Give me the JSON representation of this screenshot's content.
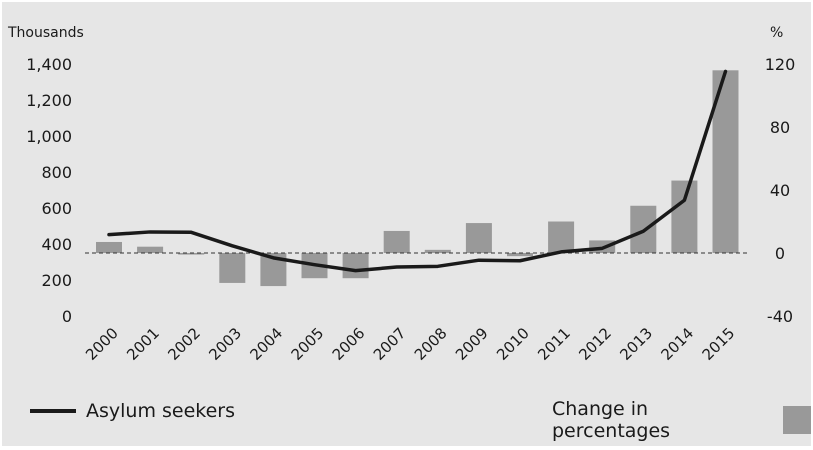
{
  "chart_data": {
    "type": "bar-line",
    "categories": [
      "2000",
      "2001",
      "2002",
      "2003",
      "2004",
      "2005",
      "2006",
      "2007",
      "2008",
      "2009",
      "2010",
      "2011",
      "2012",
      "2013",
      "2014",
      "2015"
    ],
    "left_axis": {
      "unit_label": "Thousands",
      "range": [
        0,
        1400
      ],
      "ticks": [
        0,
        200,
        400,
        600,
        800,
        1000,
        1200,
        1400
      ],
      "tick_labels": [
        "0",
        "200",
        "400",
        "600",
        "800",
        "1,000",
        "1,200",
        "1,400"
      ]
    },
    "right_axis": {
      "unit_label": "%",
      "range": [
        -40,
        120
      ],
      "ticks": [
        -40,
        0,
        40,
        80,
        120
      ],
      "tick_labels": [
        "-40",
        "0",
        "40",
        "80",
        "120"
      ]
    },
    "series": [
      {
        "name": "Asylum seekers",
        "type": "line",
        "axis": "left",
        "color": "#1a1a1a",
        "values": [
          452,
          467,
          465,
          390,
          323,
          285,
          252,
          272,
          276,
          310,
          307,
          356,
          376,
          471,
          643,
          1359
        ]
      },
      {
        "name": "Change in percentages",
        "type": "bar",
        "axis": "right",
        "color": "#999999",
        "values": [
          7,
          4,
          -1,
          -19,
          -21,
          -16,
          -16,
          14,
          2,
          19,
          -2,
          20,
          8,
          30,
          46,
          116
        ]
      }
    ],
    "zero_line": "dashed",
    "grid": false,
    "legend_position": "bottom"
  }
}
